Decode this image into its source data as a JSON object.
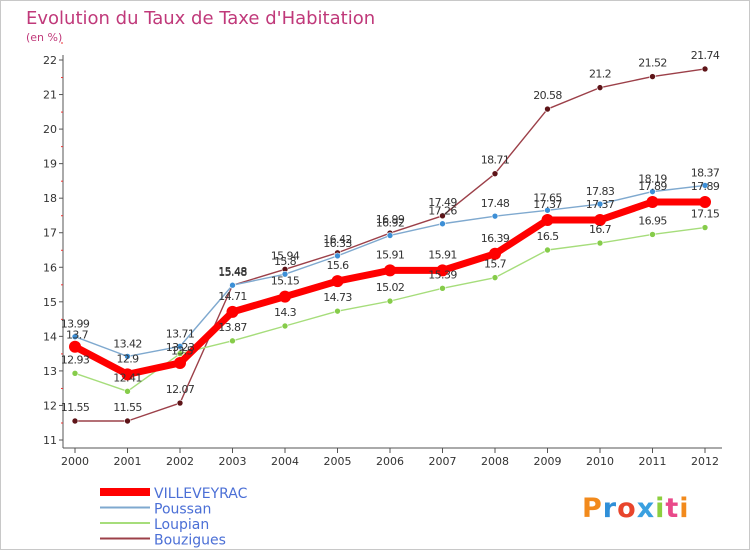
{
  "chart_data": {
    "type": "line",
    "title": "Evolution du Taux de Taxe d'Habitation",
    "ylabel": "(en %)",
    "xlabel": "",
    "x": [
      "2000",
      "2001",
      "2002",
      "2003",
      "2004",
      "2005",
      "2006",
      "2007",
      "2008",
      "2009",
      "2010",
      "2011",
      "2012"
    ],
    "yticks": [
      11,
      12,
      13,
      14,
      15,
      16,
      17,
      18,
      19,
      20,
      21,
      22
    ],
    "ylim": [
      11,
      22
    ],
    "grid": false,
    "legend_position": "bottom-left",
    "series": [
      {
        "name": "VILLEVEYRAC",
        "color": "#ff0000",
        "marker": "#ff0000",
        "values": [
          13.7,
          12.9,
          13.23,
          14.71,
          15.15,
          15.6,
          15.91,
          15.91,
          16.39,
          17.37,
          17.37,
          17.89,
          17.89
        ]
      },
      {
        "name": "Poussan",
        "color": "#7fa9cf",
        "marker": "#3d8fd6",
        "values": [
          13.99,
          13.42,
          13.71,
          15.48,
          15.8,
          16.33,
          16.92,
          17.26,
          17.48,
          17.65,
          17.83,
          18.19,
          18.37
        ]
      },
      {
        "name": "Loupian",
        "color": "#a6dd7b",
        "marker": "#86cc4a",
        "values": [
          12.93,
          12.41,
          13.5,
          13.87,
          14.3,
          14.73,
          15.02,
          15.39,
          15.7,
          16.5,
          16.7,
          16.95,
          17.15
        ]
      },
      {
        "name": "Bouzigues",
        "color": "#9c4049",
        "marker": "#5e1418",
        "values": [
          11.55,
          11.55,
          12.07,
          15.48,
          15.94,
          16.42,
          16.99,
          17.49,
          18.71,
          20.58,
          21.2,
          21.52,
          21.74
        ]
      }
    ],
    "data_labels": [
      {
        "series": 0,
        "labels": [
          "",
          "12.9",
          "13.23",
          "14.71",
          "15.15",
          "15.6",
          "15.91",
          "15.91",
          "16.39",
          "17.37",
          "17.37",
          "17.89",
          "17.89"
        ]
      },
      {
        "series": 1,
        "labels": [
          "13.99",
          "13.42",
          "13.71",
          "15.48",
          "15.8",
          "16.33",
          "16.92",
          "17.26",
          "17.48",
          "17.65",
          "17.83",
          "18.19",
          "18.37"
        ]
      },
      {
        "series": 2,
        "labels": [
          "12.93",
          "12.41",
          "",
          "13.87",
          "14.3",
          "14.73",
          "15.02",
          "15.39",
          "15.7",
          "16.5",
          "16.7",
          "16.95",
          "17.15"
        ]
      },
      {
        "series": 3,
        "labels": [
          "11.55",
          "11.55",
          "12.07",
          "15.48",
          "15.94",
          "16.42",
          "16.99",
          "17.49",
          "18.71",
          "20.58",
          "21.2",
          "21.52",
          "21.74"
        ]
      }
    ],
    "extra_labels": [
      "13.7",
      "13.5"
    ]
  },
  "logo": {
    "text": "Proxiti",
    "letters": [
      "P",
      "r",
      "o",
      "x",
      "i",
      "t",
      "i"
    ],
    "colors": [
      "#f28a1c",
      "#2f8fd8",
      "#e8452c",
      "#3aa0e0",
      "#8ccf3e",
      "#e94a8a",
      "#f28a1c"
    ]
  },
  "colors": {
    "title": "#c0397a",
    "legend_text": "#4b6fd6",
    "axis": "#333333",
    "border": "#c8c8c8"
  }
}
